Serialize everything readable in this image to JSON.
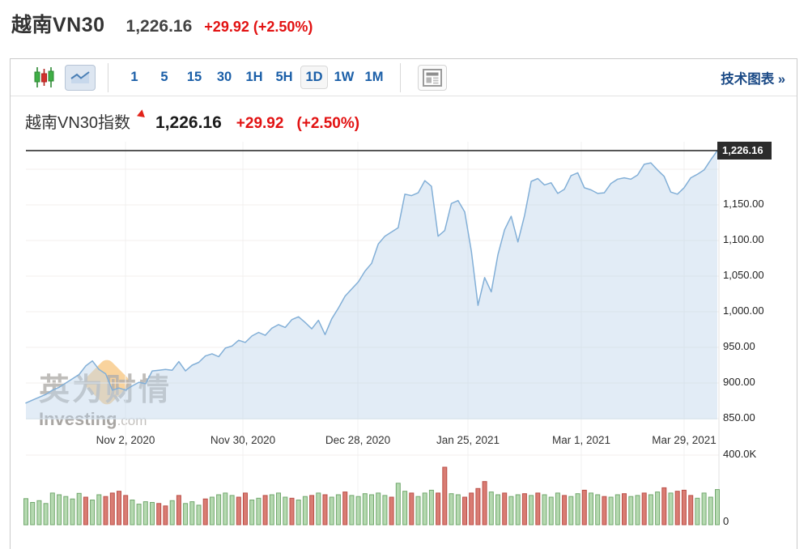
{
  "page": {
    "symbol_title": "越南VN30",
    "price": "1,226.16",
    "change": "+29.92 (+2.50%)"
  },
  "toolbar": {
    "periods": [
      "1",
      "5",
      "15",
      "30",
      "1H",
      "5H",
      "1D",
      "1W",
      "1M"
    ],
    "selected_period": "1D",
    "icons": [
      "candlestick-chart-icon",
      "area-chart-icon",
      "news-panel-icon"
    ],
    "tech_chart_link": "技术图表 »"
  },
  "chart_header": {
    "title": "越南VN30指数",
    "price": "1,226.16",
    "change": "+29.92",
    "change_pct": "(+2.50%)"
  },
  "watermark": {
    "cn": "英为财情",
    "en": "Investing",
    "en_suffix": ".com"
  },
  "chart_data": {
    "type": "area",
    "title": "越南VN30指数",
    "current_price": 1226.16,
    "current_price_label": "1,226.16",
    "x_tick_labels": [
      "Nov 2, 2020",
      "Nov 30, 2020",
      "Dec 28, 2020",
      "Jan 25, 2021",
      "Mar 1, 2021",
      "Mar 29, 2021"
    ],
    "y_tick_labels": [
      "1,150.00",
      "1,100.00",
      "1,050.00",
      "1,000.00",
      "950.00",
      "900.00",
      "850.00"
    ],
    "y_ticks": [
      1150,
      1100,
      1050,
      1000,
      950,
      900,
      850
    ],
    "gridline_prices": [
      1200,
      1150,
      1100,
      1050,
      1000,
      950,
      900,
      850
    ],
    "ylim": [
      850,
      1240
    ],
    "legend": "none",
    "grid": true,
    "prices": [
      872,
      876,
      880,
      884,
      890,
      894,
      900,
      906,
      912,
      924,
      931,
      919,
      913,
      890,
      893,
      890,
      896,
      901,
      899,
      917,
      918,
      919,
      918,
      930,
      917,
      925,
      929,
      938,
      941,
      937,
      949,
      952,
      960,
      957,
      966,
      971,
      967,
      977,
      982,
      978,
      989,
      993,
      985,
      976,
      988,
      968,
      990,
      1005,
      1022,
      1032,
      1042,
      1057,
      1068,
      1095,
      1106,
      1112,
      1118,
      1165,
      1163,
      1167,
      1184,
      1176,
      1106,
      1114,
      1152,
      1156,
      1140,
      1085,
      1009,
      1048,
      1028,
      1080,
      1115,
      1134,
      1098,
      1135,
      1183,
      1187,
      1178,
      1181,
      1166,
      1172,
      1191,
      1195,
      1174,
      1171,
      1166,
      1167,
      1180,
      1186,
      1188,
      1186,
      1192,
      1207,
      1209,
      1199,
      1190,
      1168,
      1165,
      1174,
      1188,
      1193,
      1199,
      1213,
      1226
    ],
    "volume_axis": {
      "top_label": "400.0K",
      "bottom_label": "0",
      "max_k": 400
    },
    "volumes_k": [
      150,
      128,
      138,
      122,
      182,
      172,
      162,
      148,
      180,
      158,
      142,
      172,
      162,
      182,
      192,
      168,
      142,
      118,
      132,
      128,
      122,
      108,
      138,
      168,
      122,
      132,
      112,
      148,
      158,
      172,
      182,
      168,
      158,
      182,
      142,
      152,
      168,
      172,
      182,
      158,
      152,
      142,
      162,
      168,
      182,
      172,
      158,
      172,
      188,
      168,
      162,
      178,
      172,
      182,
      168,
      158,
      238,
      192,
      182,
      162,
      182,
      198,
      182,
      330,
      178,
      172,
      158,
      182,
      208,
      248,
      188,
      172,
      182,
      162,
      172,
      178,
      168,
      182,
      172,
      158,
      182,
      168,
      162,
      178,
      198,
      182,
      172,
      162,
      158,
      172,
      178,
      162,
      168,
      182,
      172,
      188,
      212,
      182,
      192,
      198,
      168,
      152,
      182,
      158,
      202
    ],
    "volume_down_indices": [
      9,
      12,
      13,
      14,
      15,
      20,
      21,
      23,
      27,
      32,
      33,
      36,
      40,
      43,
      45,
      48,
      55,
      58,
      62,
      63,
      66,
      67,
      68,
      69,
      72,
      75,
      77,
      81,
      84,
      87,
      90,
      93,
      96,
      98,
      99,
      100
    ],
    "colors": {
      "line": "#82afd7",
      "fill": "rgba(190,212,235,0.45)",
      "grid": "#f3efec",
      "vgrid": "#f0f0f0",
      "plot_border": "#e2e2e2",
      "current_price_line": "#1f1f1f",
      "volume_up_fill": "#b5d9b0",
      "volume_up_stroke": "#72a86e",
      "volume_down_fill": "#d97c73",
      "volume_down_stroke": "#bb4f48",
      "accent_red": "#e21212",
      "accent_blue": "#1b5fa8"
    }
  }
}
